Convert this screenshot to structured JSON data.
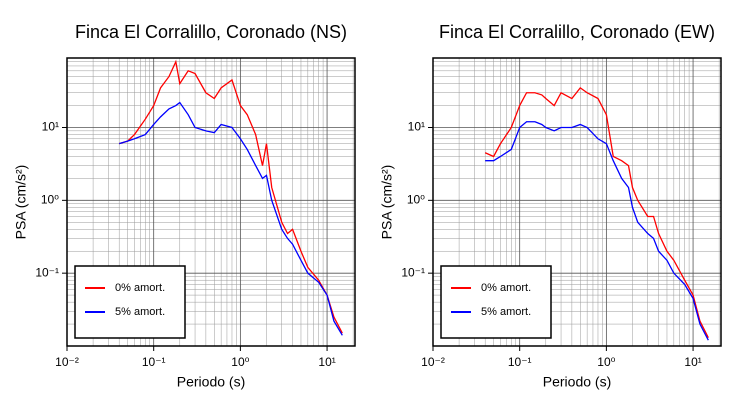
{
  "chart_data": [
    {
      "type": "line",
      "title": "Finca El Corralillo, Coronado (NS)",
      "xlabel": "Periodo (s)",
      "ylabel": "PSA (cm/s²)",
      "xscale": "log",
      "yscale": "log",
      "grid": true,
      "legend": "lower left",
      "xlim": [
        0.01,
        21
      ],
      "ylim": [
        0.01,
        90
      ],
      "xticks": [
        {
          "value": 0.01,
          "label": "10⁻²"
        },
        {
          "value": 0.1,
          "label": "10⁻¹"
        },
        {
          "value": 1,
          "label": "10⁰"
        },
        {
          "value": 10,
          "label": "10¹"
        }
      ],
      "yticks": [
        {
          "value": 0.1,
          "label": "10⁻¹"
        },
        {
          "value": 1,
          "label": "10⁰"
        },
        {
          "value": 10,
          "label": "10¹"
        }
      ],
      "x": [
        0.04,
        0.05,
        0.06,
        0.08,
        0.1,
        0.12,
        0.15,
        0.18,
        0.2,
        0.25,
        0.3,
        0.4,
        0.5,
        0.6,
        0.8,
        1.0,
        1.2,
        1.5,
        1.8,
        2,
        2.3,
        3,
        3.5,
        4,
        5,
        6,
        8,
        10,
        12,
        15
      ],
      "series": [
        {
          "name": "0% amort.",
          "color": "#ff0000",
          "values": [
            6,
            6.5,
            8,
            13,
            20,
            35,
            50,
            80,
            40,
            60,
            55,
            30,
            25,
            35,
            45,
            20,
            15,
            8,
            3,
            6,
            1.5,
            0.5,
            0.35,
            0.4,
            0.2,
            0.12,
            0.08,
            0.05,
            0.025,
            0.015
          ]
        },
        {
          "name": "5% amort.",
          "color": "#0000ff",
          "values": [
            6,
            6.5,
            7,
            8,
            11,
            14,
            18,
            20,
            22,
            15,
            10,
            9,
            8.5,
            11,
            10,
            7,
            5,
            3,
            2,
            2.2,
            1,
            0.4,
            0.3,
            0.25,
            0.15,
            0.1,
            0.075,
            0.05,
            0.022,
            0.014
          ]
        }
      ]
    },
    {
      "type": "line",
      "title": "Finca El Corralillo, Coronado (EW)",
      "xlabel": "Periodo (s)",
      "ylabel": "PSA (cm/s²)",
      "xscale": "log",
      "yscale": "log",
      "grid": true,
      "legend": "lower left",
      "xlim": [
        0.01,
        21
      ],
      "ylim": [
        0.01,
        90
      ],
      "xticks": [
        {
          "value": 0.01,
          "label": "10⁻²"
        },
        {
          "value": 0.1,
          "label": "10⁻¹"
        },
        {
          "value": 1,
          "label": "10⁰"
        },
        {
          "value": 10,
          "label": "10¹"
        }
      ],
      "yticks": [
        {
          "value": 0.1,
          "label": "10⁻¹"
        },
        {
          "value": 1,
          "label": "10⁰"
        },
        {
          "value": 10,
          "label": "10¹"
        }
      ],
      "x": [
        0.04,
        0.05,
        0.06,
        0.08,
        0.1,
        0.12,
        0.15,
        0.18,
        0.2,
        0.25,
        0.3,
        0.4,
        0.5,
        0.6,
        0.8,
        1.0,
        1.2,
        1.5,
        1.8,
        2,
        2.3,
        3,
        3.5,
        4,
        5,
        6,
        8,
        10,
        12,
        15
      ],
      "series": [
        {
          "name": "0% amort.",
          "color": "#ff0000",
          "values": [
            4.5,
            4,
            6,
            10,
            20,
            30,
            30,
            28,
            25,
            20,
            30,
            25,
            35,
            30,
            25,
            15,
            4,
            3.5,
            3,
            1.5,
            1,
            0.6,
            0.6,
            0.35,
            0.2,
            0.15,
            0.08,
            0.05,
            0.022,
            0.013
          ]
        },
        {
          "name": "5% amort.",
          "color": "#0000ff",
          "values": [
            3.5,
            3.5,
            4,
            5,
            10,
            12,
            12,
            11,
            10,
            9,
            10,
            10,
            11,
            10,
            7,
            6,
            3.5,
            2,
            1.5,
            0.8,
            0.5,
            0.35,
            0.3,
            0.2,
            0.15,
            0.1,
            0.07,
            0.045,
            0.02,
            0.012
          ]
        }
      ]
    }
  ]
}
